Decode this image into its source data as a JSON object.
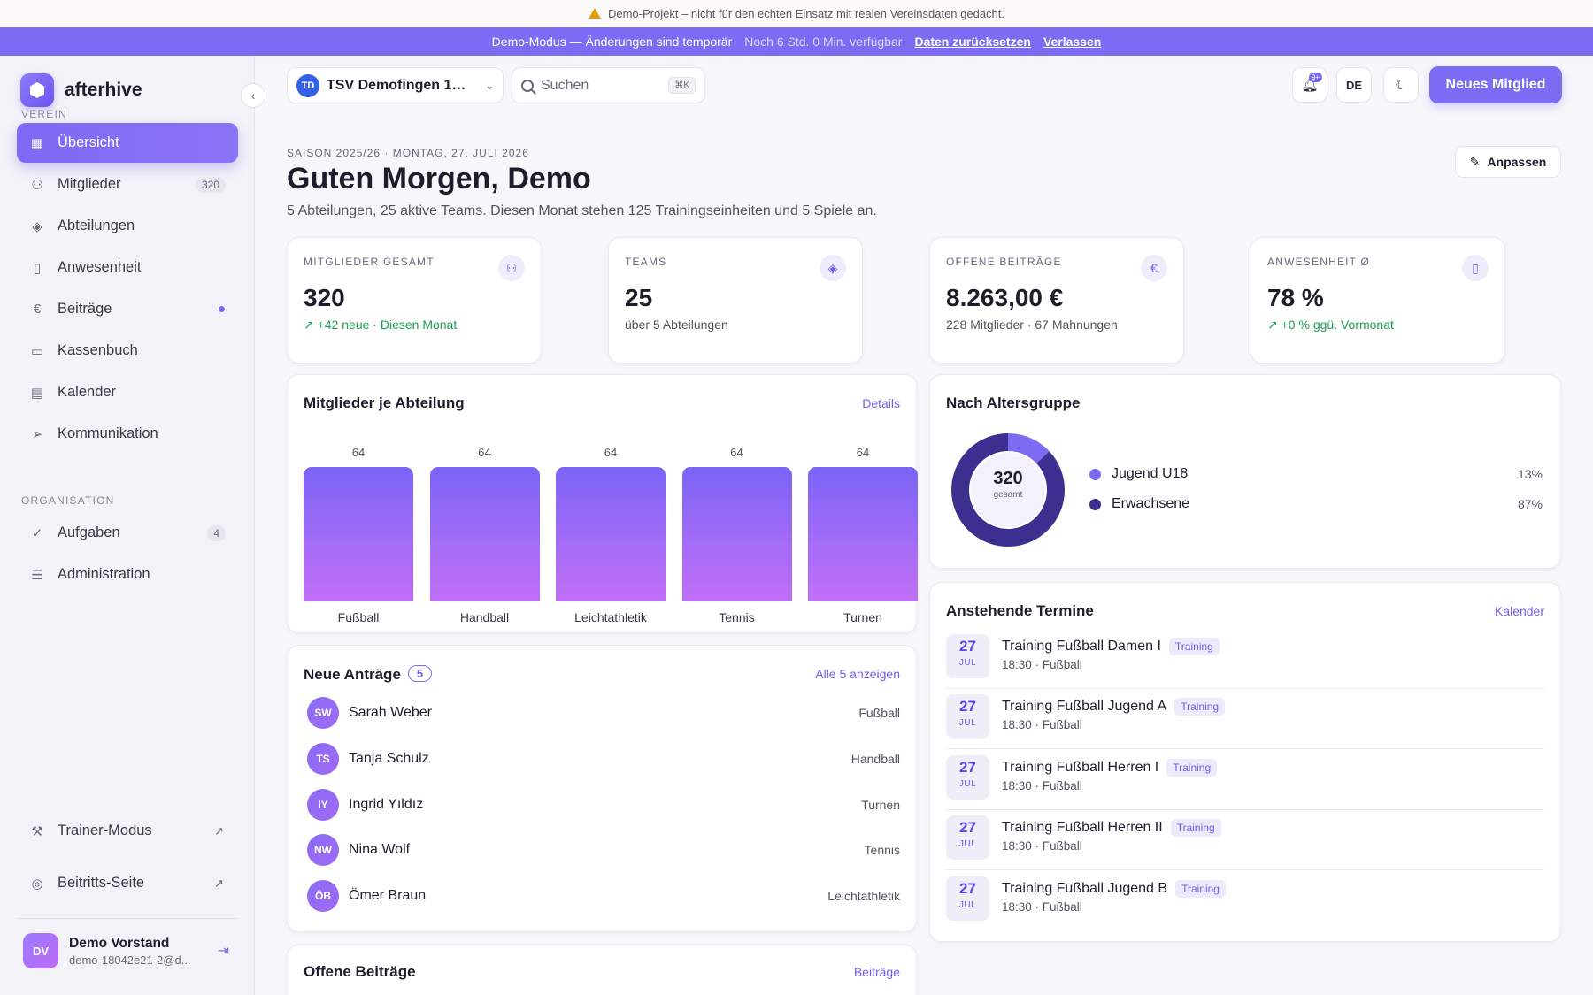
{
  "warning": {
    "text": "Demo-Projekt – nicht für den echten Einsatz mit realen Vereinsdaten gedacht."
  },
  "demo": {
    "mode": "Demo-Modus — Änderungen sind temporär",
    "remaining": "Noch 6 Std. 0 Min. verfügbar",
    "reset": "Daten zurücksetzen",
    "leave": "Verlassen"
  },
  "sidebar": {
    "brand": "afterhive",
    "section_verein": "VEREIN",
    "section_org": "ORGANISATION",
    "items": [
      {
        "label": "Übersicht",
        "icon": "grid-icon"
      },
      {
        "label": "Mitglieder",
        "icon": "users-icon",
        "badge": "320"
      },
      {
        "label": "Abteilungen",
        "icon": "layers-icon"
      },
      {
        "label": "Anwesenheit",
        "icon": "clipboard-icon"
      },
      {
        "label": "Beiträge",
        "icon": "euro-icon"
      },
      {
        "label": "Kassenbuch",
        "icon": "wallet-icon"
      },
      {
        "label": "Kalender",
        "icon": "calendar-icon"
      },
      {
        "label": "Kommunikation",
        "icon": "send-icon"
      }
    ],
    "org_items": [
      {
        "label": "Aufgaben",
        "icon": "check-circle-icon",
        "badge": "4"
      },
      {
        "label": "Administration",
        "icon": "sliders-icon"
      }
    ],
    "footer_items": [
      {
        "label": "Trainer-Modus",
        "icon": "dumbbell-icon"
      },
      {
        "label": "Beitritts-Seite",
        "icon": "globe-icon"
      }
    ],
    "user": {
      "initials": "DV",
      "name": "Demo Vorstand",
      "email": "demo-18042e21-2@d..."
    }
  },
  "topbar": {
    "club_initials": "TD",
    "club_name": "TSV Demofingen 191...",
    "search_placeholder": "Suchen",
    "search_shortcut": "⌘K",
    "notif_badge": "9+",
    "lang": "DE",
    "new_member": "Neues Mitglied"
  },
  "header": {
    "eyebrow": "SAISON 2025/26 · MONTAG, 27. JULI 2026",
    "greeting": "Guten Morgen, Demo",
    "summary": "5 Abteilungen, 25 aktive Teams. Diesen Monat stehen 125 Trainingseinheiten und 5 Spiele an.",
    "adjust": "Anpassen"
  },
  "kpis": [
    {
      "label": "MITGLIEDER GESAMT",
      "value": "320",
      "sub": "+42 neue · Diesen Monat",
      "trend": true,
      "icon": "users-icon"
    },
    {
      "label": "TEAMS",
      "value": "25",
      "sub": "über 5 Abteilungen",
      "trend": false,
      "icon": "layers-icon"
    },
    {
      "label": "OFFENE BEITRÄGE",
      "value": "8.263,00 €",
      "sub": "228 Mitglieder · 67 Mahnungen",
      "trend": false,
      "icon": "euro-icon"
    },
    {
      "label": "ANWESENHEIT Ø",
      "value": "78 %",
      "sub": "+0 % ggü. Vormonat",
      "trend": true,
      "icon": "clipboard-icon"
    }
  ],
  "dept_card": {
    "title": "Mitglieder je Abteilung",
    "link": "Details"
  },
  "chart_data": [
    {
      "type": "bar",
      "categories": [
        "Fußball",
        "Handball",
        "Leichtathletik",
        "Tennis",
        "Turnen"
      ],
      "values": [
        64,
        64,
        64,
        64,
        64
      ],
      "title": "Mitglieder je Abteilung",
      "ylim": [
        0,
        64
      ]
    },
    {
      "type": "pie",
      "title": "Nach Altersgruppe",
      "categories": [
        "Jugend U18",
        "Erwachsene"
      ],
      "values": [
        13,
        87
      ],
      "colors": [
        "#7c6cf4",
        "#3b2f8f"
      ]
    }
  ],
  "age_card": {
    "title": "Nach Altersgruppe",
    "total": "320",
    "total_label": "gesamt",
    "legend": [
      {
        "label": "Jugend U18",
        "pct": "13%",
        "color": "#7c6cf4"
      },
      {
        "label": "Erwachsene",
        "pct": "87%",
        "color": "#3b2f8f"
      }
    ]
  },
  "applications": {
    "title": "Neue Anträge",
    "count": "5",
    "link": "Alle 5 anzeigen",
    "items": [
      {
        "initials": "SW",
        "name": "Sarah Weber",
        "dept": "Fußball"
      },
      {
        "initials": "TS",
        "name": "Tanja Schulz",
        "dept": "Handball"
      },
      {
        "initials": "IY",
        "name": "Ingrid Yıldız",
        "dept": "Turnen"
      },
      {
        "initials": "NW",
        "name": "Nina Wolf",
        "dept": "Tennis"
      },
      {
        "initials": "ÖB",
        "name": "Ömer Braun",
        "dept": "Leichtathletik"
      }
    ]
  },
  "events": {
    "title": "Anstehende Termine",
    "link": "Kalender",
    "items": [
      {
        "day": "27",
        "month": "JUL",
        "title": "Training Fußball Damen I",
        "tag": "Training",
        "sub": "18:30 · Fußball"
      },
      {
        "day": "27",
        "month": "JUL",
        "title": "Training Fußball Jugend A",
        "tag": "Training",
        "sub": "18:30 · Fußball"
      },
      {
        "day": "27",
        "month": "JUL",
        "title": "Training Fußball Herren I",
        "tag": "Training",
        "sub": "18:30 · Fußball"
      },
      {
        "day": "27",
        "month": "JUL",
        "title": "Training Fußball Herren II",
        "tag": "Training",
        "sub": "18:30 · Fußball"
      },
      {
        "day": "27",
        "month": "JUL",
        "title": "Training Fußball Jugend B",
        "tag": "Training",
        "sub": "18:30 · Fußball"
      }
    ]
  },
  "fees_card": {
    "title": "Offene Beiträge",
    "link": "Beiträge"
  }
}
